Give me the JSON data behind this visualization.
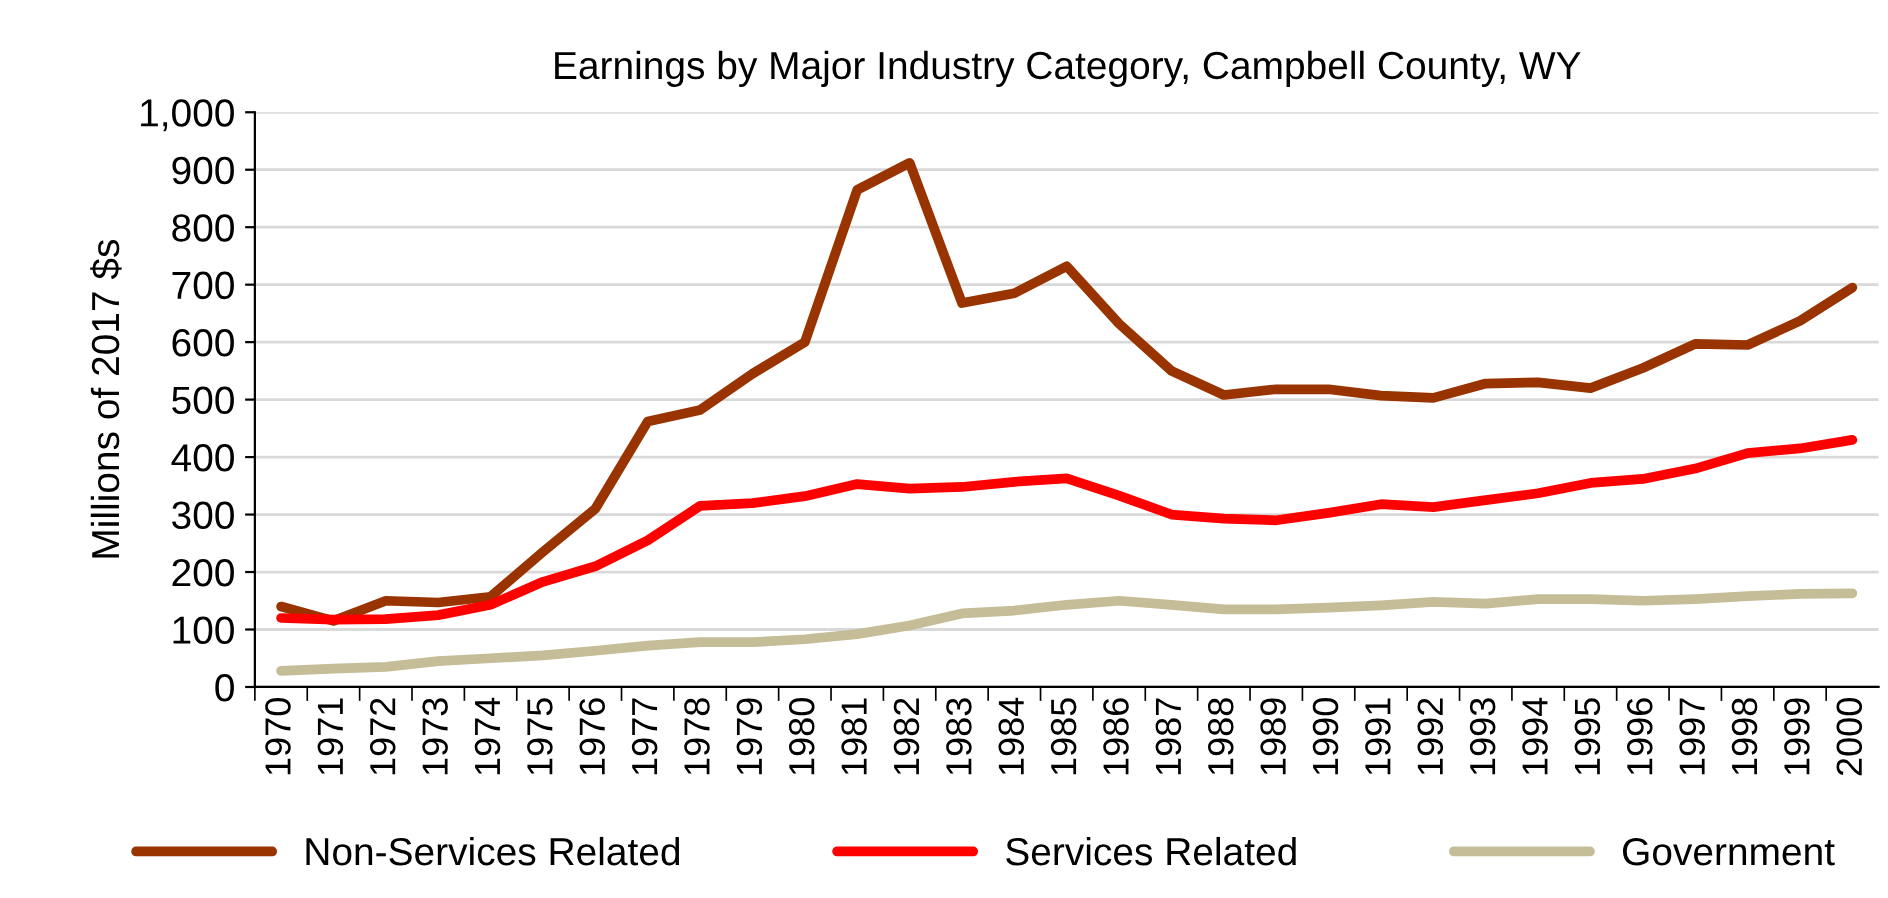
{
  "chart_data": {
    "type": "line",
    "title": "Earnings by Major Industry Category, Campbell County, WY",
    "ylabel": "Millions of 2017 $s",
    "categories": [
      "1970",
      "1971",
      "1972",
      "1973",
      "1974",
      "1975",
      "1976",
      "1977",
      "1978",
      "1979",
      "1980",
      "1981",
      "1982",
      "1983",
      "1984",
      "1985",
      "1986",
      "1987",
      "1988",
      "1989",
      "1990",
      "1991",
      "1992",
      "1993",
      "1994",
      "1995",
      "1996",
      "1997",
      "1998",
      "1999",
      "2000"
    ],
    "series": [
      {
        "name": "Non-Services Related",
        "color": "#993300",
        "values": [
          140,
          115,
          150,
          147,
          157,
          235,
          310,
          462,
          482,
          545,
          600,
          865,
          912,
          668,
          685,
          732,
          632,
          550,
          508,
          518,
          518,
          507,
          503,
          528,
          530,
          520,
          555,
          597,
          595,
          637,
          695
        ]
      },
      {
        "name": "Services Related",
        "color": "#ff0000",
        "values": [
          120,
          117,
          118,
          125,
          143,
          183,
          210,
          255,
          315,
          320,
          332,
          353,
          345,
          348,
          357,
          363,
          333,
          300,
          293,
          290,
          303,
          318,
          313,
          325,
          337,
          355,
          362,
          380,
          407,
          415,
          430
        ]
      },
      {
        "name": "Government",
        "color": "#c4bd97",
        "values": [
          28,
          32,
          35,
          45,
          50,
          55,
          63,
          72,
          78,
          78,
          83,
          92,
          107,
          128,
          133,
          143,
          150,
          143,
          135,
          135,
          138,
          142,
          148,
          145,
          153,
          153,
          150,
          153,
          158,
          162,
          163
        ]
      }
    ],
    "ylim": [
      0,
      1000
    ],
    "yticks": [
      0,
      100,
      200,
      300,
      400,
      500,
      600,
      700,
      800,
      900,
      {
        "value": 1000,
        "label": "1,000"
      }
    ],
    "grid": "y",
    "legend": "bottom",
    "marker": "none",
    "line_style": "solid"
  }
}
